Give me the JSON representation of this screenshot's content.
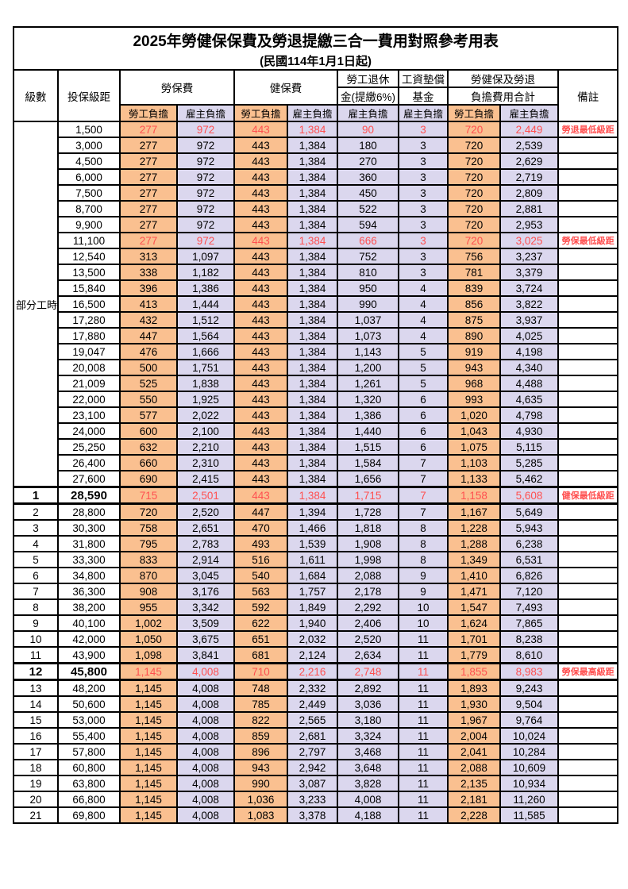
{
  "title": "2025年勞健保保費及勞退提繳三合一費用對照參考用表",
  "subtitle": "(民國114年1月1日起)",
  "colors": {
    "employee_col_bg": "#FAC090",
    "employer_col_bg": "#DBD7EE",
    "highlight_text": "#FF5050",
    "border": "#000000"
  },
  "header": {
    "level": "級數",
    "bracket": "投保級距",
    "labor_insurance": "勞保費",
    "health_insurance": "健保費",
    "pension_line1": "勞工退休",
    "pension_line2": "金(提繳6%)",
    "wage_fund_line1": "工資墊償",
    "wage_fund_line2": "基金",
    "total_line1": "勞健保及勞退",
    "total_line2": "負擔費用合計",
    "employee_share": "勞工負擔",
    "employer_share": "雇主負擔",
    "notes": "備註"
  },
  "part_time_label": "部分工時",
  "rows": [
    {
      "level": "",
      "bracket": "1,500",
      "values": [
        "277",
        "972",
        "443",
        "1,384",
        "90",
        "3",
        "720",
        "2,449"
      ],
      "note": "勞退最低級距",
      "red": true,
      "bold": false
    },
    {
      "level": "",
      "bracket": "3,000",
      "values": [
        "277",
        "972",
        "443",
        "1,384",
        "180",
        "3",
        "720",
        "2,539"
      ],
      "note": "",
      "red": false,
      "bold": false
    },
    {
      "level": "",
      "bracket": "4,500",
      "values": [
        "277",
        "972",
        "443",
        "1,384",
        "270",
        "3",
        "720",
        "2,629"
      ],
      "note": "",
      "red": false,
      "bold": false
    },
    {
      "level": "",
      "bracket": "6,000",
      "values": [
        "277",
        "972",
        "443",
        "1,384",
        "360",
        "3",
        "720",
        "2,719"
      ],
      "note": "",
      "red": false,
      "bold": false
    },
    {
      "level": "",
      "bracket": "7,500",
      "values": [
        "277",
        "972",
        "443",
        "1,384",
        "450",
        "3",
        "720",
        "2,809"
      ],
      "note": "",
      "red": false,
      "bold": false
    },
    {
      "level": "",
      "bracket": "8,700",
      "values": [
        "277",
        "972",
        "443",
        "1,384",
        "522",
        "3",
        "720",
        "2,881"
      ],
      "note": "",
      "red": false,
      "bold": false
    },
    {
      "level": "",
      "bracket": "9,900",
      "values": [
        "277",
        "972",
        "443",
        "1,384",
        "594",
        "3",
        "720",
        "2,953"
      ],
      "note": "",
      "red": false,
      "bold": false
    },
    {
      "level": "",
      "bracket": "11,100",
      "values": [
        "277",
        "972",
        "443",
        "1,384",
        "666",
        "3",
        "720",
        "3,025"
      ],
      "note": "勞保最低級距",
      "red": true,
      "bold": false
    },
    {
      "level": "",
      "bracket": "12,540",
      "values": [
        "313",
        "1,097",
        "443",
        "1,384",
        "752",
        "3",
        "756",
        "3,237"
      ],
      "note": "",
      "red": false,
      "bold": false
    },
    {
      "level": "",
      "bracket": "13,500",
      "values": [
        "338",
        "1,182",
        "443",
        "1,384",
        "810",
        "3",
        "781",
        "3,379"
      ],
      "note": "",
      "red": false,
      "bold": false
    },
    {
      "level": "",
      "bracket": "15,840",
      "values": [
        "396",
        "1,386",
        "443",
        "1,384",
        "950",
        "4",
        "839",
        "3,724"
      ],
      "note": "",
      "red": false,
      "bold": false
    },
    {
      "level": "",
      "bracket": "16,500",
      "values": [
        "413",
        "1,444",
        "443",
        "1,384",
        "990",
        "4",
        "856",
        "3,822"
      ],
      "note": "",
      "red": false,
      "bold": false
    },
    {
      "level": "",
      "bracket": "17,280",
      "values": [
        "432",
        "1,512",
        "443",
        "1,384",
        "1,037",
        "4",
        "875",
        "3,937"
      ],
      "note": "",
      "red": false,
      "bold": false
    },
    {
      "level": "",
      "bracket": "17,880",
      "values": [
        "447",
        "1,564",
        "443",
        "1,384",
        "1,073",
        "4",
        "890",
        "4,025"
      ],
      "note": "",
      "red": false,
      "bold": false
    },
    {
      "level": "",
      "bracket": "19,047",
      "values": [
        "476",
        "1,666",
        "443",
        "1,384",
        "1,143",
        "5",
        "919",
        "4,198"
      ],
      "note": "",
      "red": false,
      "bold": false
    },
    {
      "level": "",
      "bracket": "20,008",
      "values": [
        "500",
        "1,751",
        "443",
        "1,384",
        "1,200",
        "5",
        "943",
        "4,340"
      ],
      "note": "",
      "red": false,
      "bold": false
    },
    {
      "level": "",
      "bracket": "21,009",
      "values": [
        "525",
        "1,838",
        "443",
        "1,384",
        "1,261",
        "5",
        "968",
        "4,488"
      ],
      "note": "",
      "red": false,
      "bold": false
    },
    {
      "level": "",
      "bracket": "22,000",
      "values": [
        "550",
        "1,925",
        "443",
        "1,384",
        "1,320",
        "6",
        "993",
        "4,635"
      ],
      "note": "",
      "red": false,
      "bold": false
    },
    {
      "level": "",
      "bracket": "23,100",
      "values": [
        "577",
        "2,022",
        "443",
        "1,384",
        "1,386",
        "6",
        "1,020",
        "4,798"
      ],
      "note": "",
      "red": false,
      "bold": false
    },
    {
      "level": "",
      "bracket": "24,000",
      "values": [
        "600",
        "2,100",
        "443",
        "1,384",
        "1,440",
        "6",
        "1,043",
        "4,930"
      ],
      "note": "",
      "red": false,
      "bold": false
    },
    {
      "level": "",
      "bracket": "25,250",
      "values": [
        "632",
        "2,210",
        "443",
        "1,384",
        "1,515",
        "6",
        "1,075",
        "5,115"
      ],
      "note": "",
      "red": false,
      "bold": false
    },
    {
      "level": "",
      "bracket": "26,400",
      "values": [
        "660",
        "2,310",
        "443",
        "1,384",
        "1,584",
        "7",
        "1,103",
        "5,285"
      ],
      "note": "",
      "red": false,
      "bold": false
    },
    {
      "level": "",
      "bracket": "27,600",
      "values": [
        "690",
        "2,415",
        "443",
        "1,384",
        "1,656",
        "7",
        "1,133",
        "5,462"
      ],
      "note": "",
      "red": false,
      "bold": false
    },
    {
      "level": "1",
      "bracket": "28,590",
      "values": [
        "715",
        "2,501",
        "443",
        "1,384",
        "1,715",
        "7",
        "1,158",
        "5,608"
      ],
      "note": "健保最低級距",
      "red": true,
      "bold": true
    },
    {
      "level": "2",
      "bracket": "28,800",
      "values": [
        "720",
        "2,520",
        "447",
        "1,394",
        "1,728",
        "7",
        "1,167",
        "5,649"
      ],
      "note": "",
      "red": false,
      "bold": false
    },
    {
      "level": "3",
      "bracket": "30,300",
      "values": [
        "758",
        "2,651",
        "470",
        "1,466",
        "1,818",
        "8",
        "1,228",
        "5,943"
      ],
      "note": "",
      "red": false,
      "bold": false
    },
    {
      "level": "4",
      "bracket": "31,800",
      "values": [
        "795",
        "2,783",
        "493",
        "1,539",
        "1,908",
        "8",
        "1,288",
        "6,238"
      ],
      "note": "",
      "red": false,
      "bold": false
    },
    {
      "level": "5",
      "bracket": "33,300",
      "values": [
        "833",
        "2,914",
        "516",
        "1,611",
        "1,998",
        "8",
        "1,349",
        "6,531"
      ],
      "note": "",
      "red": false,
      "bold": false
    },
    {
      "level": "6",
      "bracket": "34,800",
      "values": [
        "870",
        "3,045",
        "540",
        "1,684",
        "2,088",
        "9",
        "1,410",
        "6,826"
      ],
      "note": "",
      "red": false,
      "bold": false
    },
    {
      "level": "7",
      "bracket": "36,300",
      "values": [
        "908",
        "3,176",
        "563",
        "1,757",
        "2,178",
        "9",
        "1,471",
        "7,120"
      ],
      "note": "",
      "red": false,
      "bold": false
    },
    {
      "level": "8",
      "bracket": "38,200",
      "values": [
        "955",
        "3,342",
        "592",
        "1,849",
        "2,292",
        "10",
        "1,547",
        "7,493"
      ],
      "note": "",
      "red": false,
      "bold": false
    },
    {
      "level": "9",
      "bracket": "40,100",
      "values": [
        "1,002",
        "3,509",
        "622",
        "1,940",
        "2,406",
        "10",
        "1,624",
        "7,865"
      ],
      "note": "",
      "red": false,
      "bold": false
    },
    {
      "level": "10",
      "bracket": "42,000",
      "values": [
        "1,050",
        "3,675",
        "651",
        "2,032",
        "2,520",
        "11",
        "1,701",
        "8,238"
      ],
      "note": "",
      "red": false,
      "bold": false
    },
    {
      "level": "11",
      "bracket": "43,900",
      "values": [
        "1,098",
        "3,841",
        "681",
        "2,124",
        "2,634",
        "11",
        "1,779",
        "8,610"
      ],
      "note": "",
      "red": false,
      "bold": false
    },
    {
      "level": "12",
      "bracket": "45,800",
      "values": [
        "1,145",
        "4,008",
        "710",
        "2,216",
        "2,748",
        "11",
        "1,855",
        "8,983"
      ],
      "note": "勞保最高級距",
      "red": true,
      "bold": true
    },
    {
      "level": "13",
      "bracket": "48,200",
      "values": [
        "1,145",
        "4,008",
        "748",
        "2,332",
        "2,892",
        "11",
        "1,893",
        "9,243"
      ],
      "note": "",
      "red": false,
      "bold": false
    },
    {
      "level": "14",
      "bracket": "50,600",
      "values": [
        "1,145",
        "4,008",
        "785",
        "2,449",
        "3,036",
        "11",
        "1,930",
        "9,504"
      ],
      "note": "",
      "red": false,
      "bold": false
    },
    {
      "level": "15",
      "bracket": "53,000",
      "values": [
        "1,145",
        "4,008",
        "822",
        "2,565",
        "3,180",
        "11",
        "1,967",
        "9,764"
      ],
      "note": "",
      "red": false,
      "bold": false
    },
    {
      "level": "16",
      "bracket": "55,400",
      "values": [
        "1,145",
        "4,008",
        "859",
        "2,681",
        "3,324",
        "11",
        "2,004",
        "10,024"
      ],
      "note": "",
      "red": false,
      "bold": false
    },
    {
      "level": "17",
      "bracket": "57,800",
      "values": [
        "1,145",
        "4,008",
        "896",
        "2,797",
        "3,468",
        "11",
        "2,041",
        "10,284"
      ],
      "note": "",
      "red": false,
      "bold": false
    },
    {
      "level": "18",
      "bracket": "60,800",
      "values": [
        "1,145",
        "4,008",
        "943",
        "2,942",
        "3,648",
        "11",
        "2,088",
        "10,609"
      ],
      "note": "",
      "red": false,
      "bold": false
    },
    {
      "level": "19",
      "bracket": "63,800",
      "values": [
        "1,145",
        "4,008",
        "990",
        "3,087",
        "3,828",
        "11",
        "2,135",
        "10,934"
      ],
      "note": "",
      "red": false,
      "bold": false
    },
    {
      "level": "20",
      "bracket": "66,800",
      "values": [
        "1,145",
        "4,008",
        "1,036",
        "3,233",
        "4,008",
        "11",
        "2,181",
        "11,260"
      ],
      "note": "",
      "red": false,
      "bold": false
    },
    {
      "level": "21",
      "bracket": "69,800",
      "values": [
        "1,145",
        "4,008",
        "1,083",
        "3,378",
        "4,188",
        "11",
        "2,228",
        "11,585"
      ],
      "note": "",
      "red": false,
      "bold": false
    }
  ]
}
